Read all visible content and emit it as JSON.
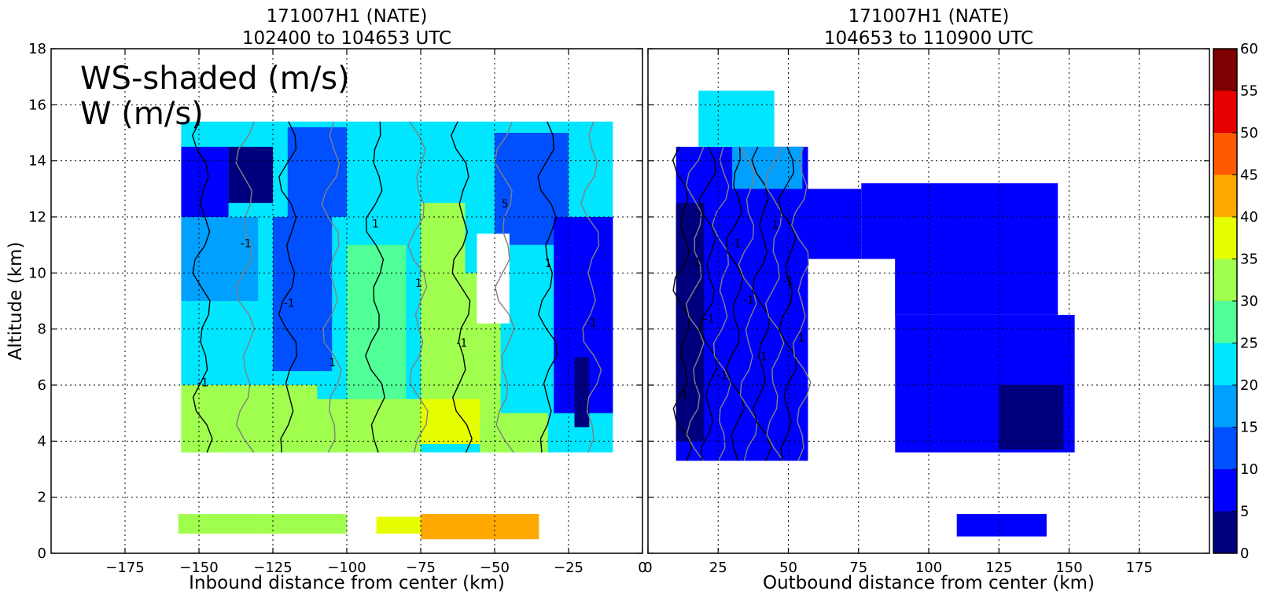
{
  "colors": {
    "scale": [
      "#00007f",
      "#0000ff",
      "#0050ff",
      "#00a0ff",
      "#00e6ff",
      "#50ff96",
      "#a0ff4e",
      "#e6ff00",
      "#ffa800",
      "#ff5a00",
      "#e60000",
      "#7f0000"
    ],
    "contour_w": "#000000",
    "contour_gray": "#808080"
  },
  "chart_data": [
    {
      "type": "heatmap",
      "title": "171007H1 (NATE)",
      "subtitle": "102400 to 104653 UTC",
      "xlabel": "Inbound distance from center (km)",
      "ylabel": "Altitude (km)",
      "xlim": [
        -200,
        0
      ],
      "ylim": [
        0,
        18
      ],
      "xticks": [
        "−175",
        "−150",
        "−125",
        "−100",
        "−75",
        "−50",
        "−25",
        "0"
      ],
      "xtick_values": [
        -175,
        -150,
        -125,
        -100,
        -75,
        -50,
        -25,
        0
      ],
      "yticks": [
        "0",
        "2",
        "4",
        "6",
        "8",
        "10",
        "12",
        "14",
        "16",
        "18"
      ],
      "ytick_values": [
        0,
        2,
        4,
        6,
        8,
        10,
        12,
        14,
        16,
        18
      ],
      "grid": true,
      "annotations": [
        "WS-shaded (m/s)",
        "W (m/s)"
      ],
      "contour_labels": [
        "-1",
        "-1",
        "-1",
        "1",
        "1",
        "1",
        "-1",
        "5",
        "1",
        "-1"
      ],
      "regions": [
        {
          "x": [
            -156,
            -10
          ],
          "y": [
            3.6,
            15.4
          ],
          "value": 22
        },
        {
          "x": [
            -156,
            -140
          ],
          "y": [
            12.0,
            14.5
          ],
          "value": 7
        },
        {
          "x": [
            -140,
            -125
          ],
          "y": [
            12.5,
            14.5
          ],
          "value": 4
        },
        {
          "x": [
            -120,
            -100
          ],
          "y": [
            12.0,
            15.2
          ],
          "value": 12
        },
        {
          "x": [
            -156,
            -130
          ],
          "y": [
            9.0,
            12.0
          ],
          "value": 15
        },
        {
          "x": [
            -125,
            -105
          ],
          "y": [
            6.5,
            12.0
          ],
          "value": 13
        },
        {
          "x": [
            -100,
            -80
          ],
          "y": [
            5.0,
            11.0
          ],
          "value": 28
        },
        {
          "x": [
            -75,
            -60
          ],
          "y": [
            4.5,
            12.5
          ],
          "value": 30
        },
        {
          "x": [
            -60,
            -48
          ],
          "y": [
            4.5,
            10.0
          ],
          "value": 33
        },
        {
          "x": [
            -50,
            -25
          ],
          "y": [
            11.0,
            15.0
          ],
          "value": 11
        },
        {
          "x": [
            -30,
            -10
          ],
          "y": [
            5.0,
            12.0
          ],
          "value": 9
        },
        {
          "x": [
            -156,
            -110
          ],
          "y": [
            3.6,
            6.0
          ],
          "value": 31
        },
        {
          "x": [
            -110,
            -75
          ],
          "y": [
            3.6,
            5.5
          ],
          "value": 33
        },
        {
          "x": [
            -75,
            -55
          ],
          "y": [
            3.9,
            5.5
          ],
          "value": 37
        },
        {
          "x": [
            -55,
            -32
          ],
          "y": [
            3.6,
            5.0
          ],
          "value": 31
        },
        {
          "x": [
            -23,
            -18
          ],
          "y": [
            4.5,
            7.0
          ],
          "value": 2
        },
        {
          "x": [
            -157,
            -130
          ],
          "y": [
            0.7,
            1.4
          ],
          "value": 30
        },
        {
          "x": [
            -130,
            -100
          ],
          "y": [
            0.7,
            1.4
          ],
          "value": 34
        },
        {
          "x": [
            -90,
            -75
          ],
          "y": [
            0.7,
            1.3
          ],
          "value": 37
        },
        {
          "x": [
            -75,
            -35
          ],
          "y": [
            0.5,
            1.4
          ],
          "value": 42
        }
      ],
      "voids": [
        {
          "x": [
            -56,
            -45
          ],
          "y": [
            8.2,
            11.4
          ]
        }
      ]
    },
    {
      "type": "heatmap",
      "title": "171007H1 (NATE)",
      "subtitle": "104653 to 110900 UTC",
      "xlabel": "Outbound distance from center (km)",
      "ylabel": "",
      "xlim": [
        0,
        200
      ],
      "ylim": [
        0,
        18
      ],
      "xticks": [
        "0",
        "25",
        "50",
        "75",
        "100",
        "125",
        "150",
        "175"
      ],
      "xtick_values": [
        0,
        25,
        50,
        75,
        100,
        125,
        150,
        175
      ],
      "yticks": [],
      "ytick_values": [
        0,
        2,
        4,
        6,
        8,
        10,
        12,
        14,
        16,
        18
      ],
      "grid": true,
      "annotations": [],
      "contour_labels": [
        "-1",
        "-1",
        "-1",
        "-1",
        "-1",
        "-1",
        "-1",
        "1",
        "-1",
        "1"
      ],
      "regions": [
        {
          "x": [
            10,
            57
          ],
          "y": [
            3.3,
            14.5
          ],
          "value": 7
        },
        {
          "x": [
            18,
            45
          ],
          "y": [
            14.5,
            16.5
          ],
          "value": 22
        },
        {
          "x": [
            30,
            55
          ],
          "y": [
            13.0,
            14.5
          ],
          "value": 17
        },
        {
          "x": [
            55,
            76
          ],
          "y": [
            10.5,
            13.0
          ],
          "value": 8
        },
        {
          "x": [
            76,
            146
          ],
          "y": [
            8.5,
            13.2
          ],
          "value": 7
        },
        {
          "x": [
            88,
            152
          ],
          "y": [
            3.6,
            8.5
          ],
          "value": 6
        },
        {
          "x": [
            125,
            148
          ],
          "y": [
            3.7,
            6.0
          ],
          "value": 3
        },
        {
          "x": [
            10,
            20
          ],
          "y": [
            4.0,
            12.5
          ],
          "value": 3
        },
        {
          "x": [
            110,
            142
          ],
          "y": [
            0.6,
            1.4
          ],
          "value": 6
        }
      ],
      "voids": [
        {
          "x": [
            57,
            88
          ],
          "y": [
            3.0,
            10.5
          ]
        }
      ]
    }
  ],
  "colorbar": {
    "ticks": [
      "0",
      "5",
      "10",
      "15",
      "20",
      "25",
      "30",
      "35",
      "40",
      "45",
      "50",
      "55",
      "60"
    ],
    "tick_values": [
      0,
      5,
      10,
      15,
      20,
      25,
      30,
      35,
      40,
      45,
      50,
      55,
      60
    ],
    "range": [
      0,
      60
    ]
  }
}
